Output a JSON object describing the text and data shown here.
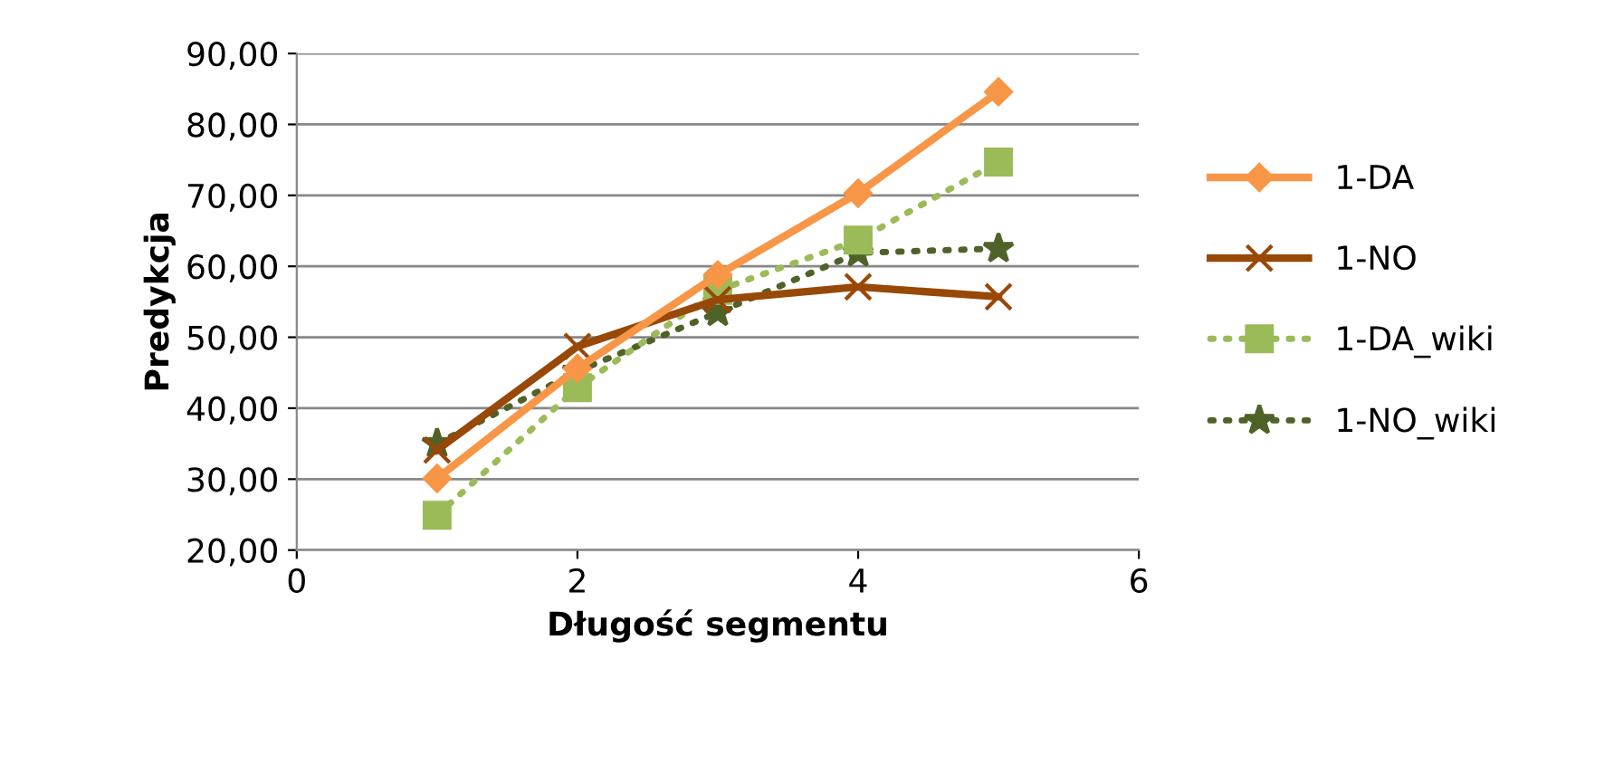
{
  "chart_data": {
    "type": "line",
    "xlabel": "Długość segmentu",
    "ylabel": "Predykcja",
    "x": [
      1,
      2,
      3,
      4,
      5
    ],
    "series": [
      {
        "name": "1-DA",
        "color": "#f79646",
        "values": [
          30.1,
          45.6,
          58.8,
          70.3,
          84.6
        ],
        "marker": "diamond",
        "line_style": "solid"
      },
      {
        "name": "1-NO",
        "color": "#984807",
        "values": [
          34.1,
          48.7,
          55.3,
          57.1,
          55.7
        ],
        "marker": "cross",
        "line_style": "solid"
      },
      {
        "name": "1-DA_wiki",
        "color": "#9bbb59",
        "values": [
          24.9,
          42.9,
          56.6,
          63.7,
          74.7
        ],
        "marker": "square",
        "line_style": "dotted"
      },
      {
        "name": "1-NO_wiki",
        "color": "#4f6228",
        "values": [
          35.0,
          45.2,
          53.5,
          61.9,
          62.5
        ],
        "marker": "star",
        "line_style": "dotted"
      }
    ],
    "xlim": [
      0,
      6
    ],
    "xticks": [
      0,
      2,
      4,
      6
    ],
    "ylim": [
      20,
      90
    ],
    "yticks": [
      {
        "value": 20,
        "label": "20,00"
      },
      {
        "value": 30,
        "label": "30,00"
      },
      {
        "value": 40,
        "label": "40,00"
      },
      {
        "value": 50,
        "label": "50,00"
      },
      {
        "value": 60,
        "label": "60,00"
      },
      {
        "value": 70,
        "label": "70,00"
      },
      {
        "value": 80,
        "label": "80,00"
      },
      {
        "value": 90,
        "label": "90,00"
      }
    ],
    "grid": "y",
    "legend": "right"
  }
}
